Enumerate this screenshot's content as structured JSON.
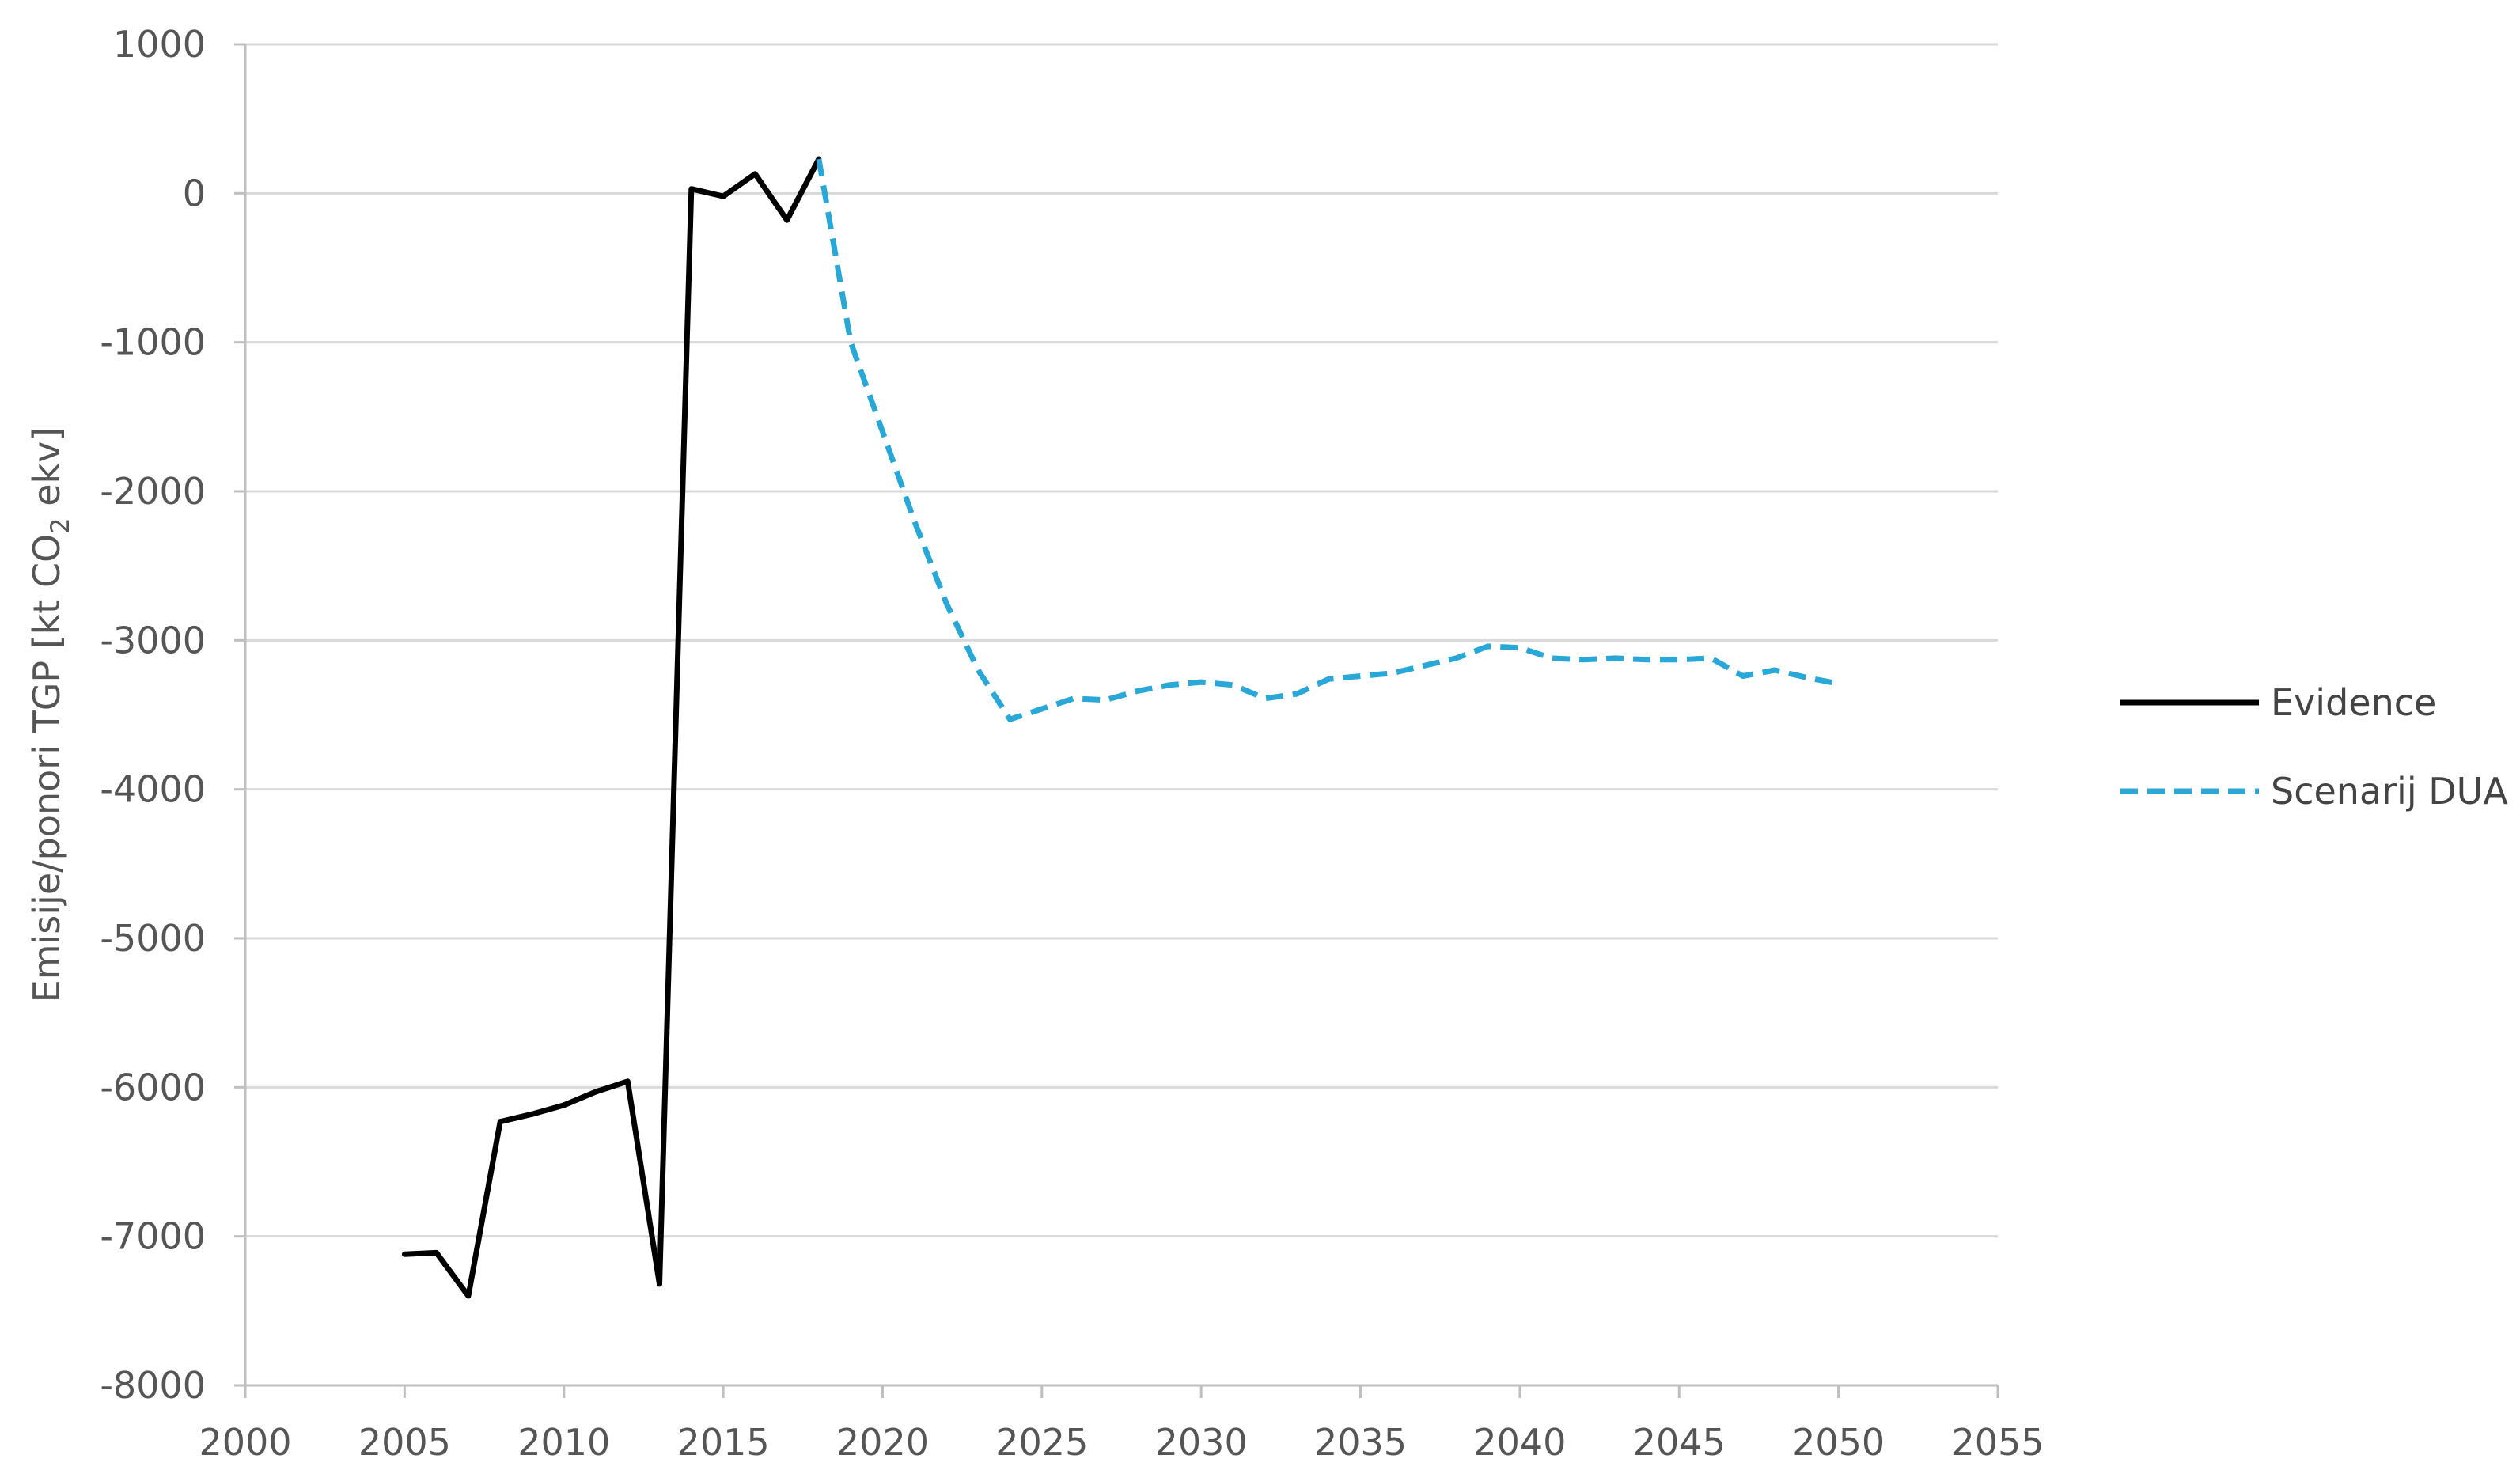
{
  "chart_data": {
    "type": "line",
    "title": "",
    "xlabel": "",
    "ylabel": {
      "prefix": "Emisije/ponori TGP [kt CO",
      "subscript": "2",
      "suffix": " ekv]"
    },
    "xlim": [
      2000,
      2055
    ],
    "ylim": [
      -8000,
      1000
    ],
    "x_ticks": [
      2000,
      2005,
      2010,
      2015,
      2020,
      2025,
      2030,
      2035,
      2040,
      2045,
      2050,
      2055
    ],
    "y_ticks": [
      1000,
      0,
      -1000,
      -2000,
      -3000,
      -4000,
      -5000,
      -6000,
      -7000,
      -8000
    ],
    "grid": "horizontal",
    "legend_position": "right",
    "series": [
      {
        "name": "Evidence",
        "color": "#000000",
        "dash": "solid",
        "x": [
          2005,
          2006,
          2007,
          2008,
          2009,
          2010,
          2011,
          2012,
          2013,
          2014,
          2015,
          2016,
          2017,
          2018
        ],
        "y": [
          -7120,
          -7110,
          -7400,
          -6230,
          -6180,
          -6120,
          -6030,
          -5960,
          -7320,
          30,
          -20,
          130,
          -180,
          230
        ]
      },
      {
        "name": "Scenarij DUA",
        "color": "#29a8d8",
        "dash": "dashed",
        "x": [
          2018,
          2019,
          2020,
          2021,
          2022,
          2023,
          2024,
          2025,
          2026,
          2027,
          2028,
          2029,
          2030,
          2031,
          2032,
          2033,
          2034,
          2035,
          2036,
          2037,
          2038,
          2039,
          2040,
          2041,
          2042,
          2043,
          2044,
          2045,
          2046,
          2047,
          2048,
          2049,
          2050
        ],
        "y": [
          230,
          -1000,
          -1600,
          -2200,
          -2750,
          -3200,
          -3530,
          -3460,
          -3390,
          -3400,
          -3340,
          -3300,
          -3280,
          -3300,
          -3390,
          -3360,
          -3260,
          -3240,
          -3220,
          -3170,
          -3120,
          -3040,
          -3050,
          -3120,
          -3130,
          -3120,
          -3130,
          -3130,
          -3120,
          -3240,
          -3200,
          -3250,
          -3290
        ]
      }
    ]
  }
}
